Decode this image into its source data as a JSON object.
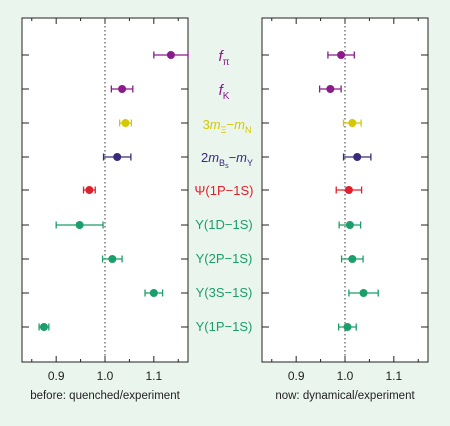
{
  "chart_data": [
    {
      "type": "scatter",
      "title": "",
      "xlabel": "before: quenched/experiment",
      "ylabel": "",
      "xlim": [
        0.83,
        1.17
      ],
      "xticks": [
        "0.9",
        "1.0",
        "1.1"
      ],
      "reference_line": 1.0,
      "points": [
        {
          "y": "f_π",
          "x": 1.135,
          "err": 0.035,
          "color": "#8b1a8b"
        },
        {
          "y": "f_K",
          "x": 1.035,
          "err": 0.022,
          "color": "#8b1a8b"
        },
        {
          "y": "3m_Ξ − m_N",
          "x": 1.042,
          "err": 0.012,
          "color": "#d4c800"
        },
        {
          "y": "2m_Bs − m_Υ",
          "x": 1.025,
          "err": 0.028,
          "color": "#3a2a7a"
        },
        {
          "y": "Ψ(1P−1S)",
          "x": 0.968,
          "err": 0.012,
          "color": "#e0202a"
        },
        {
          "y": "Υ(1D−1S)",
          "x": 0.948,
          "err": 0.048,
          "color": "#1a9e6a"
        },
        {
          "y": "Υ(2P−1S)",
          "x": 1.015,
          "err": 0.02,
          "color": "#1a9e6a"
        },
        {
          "y": "Υ(3S−1S)",
          "x": 1.1,
          "err": 0.018,
          "color": "#1a9e6a"
        },
        {
          "y": "Υ(1P−1S)",
          "x": 0.875,
          "err": 0.01,
          "color": "#1a9e6a"
        }
      ]
    },
    {
      "type": "scatter",
      "title": "",
      "xlabel": "now: dynamical/experiment",
      "ylabel": "",
      "xlim": [
        0.83,
        1.17
      ],
      "xticks": [
        "0.9",
        "1.0",
        "1.1"
      ],
      "reference_line": 1.0,
      "points": [
        {
          "y": "f_π",
          "x": 0.992,
          "err": 0.027,
          "color": "#8b1a8b"
        },
        {
          "y": "f_K",
          "x": 0.97,
          "err": 0.022,
          "color": "#8b1a8b"
        },
        {
          "y": "3m_Ξ − m_N",
          "x": 1.015,
          "err": 0.018,
          "color": "#d4c800"
        },
        {
          "y": "2m_Bs − m_Υ",
          "x": 1.025,
          "err": 0.028,
          "color": "#3a2a7a"
        },
        {
          "y": "Ψ(1P−1S)",
          "x": 1.008,
          "err": 0.026,
          "color": "#e0202a"
        },
        {
          "y": "Υ(1D−1S)",
          "x": 1.01,
          "err": 0.022,
          "color": "#1a9e6a"
        },
        {
          "y": "Υ(2P−1S)",
          "x": 1.015,
          "err": 0.022,
          "color": "#1a9e6a"
        },
        {
          "y": "Υ(3S−1S)",
          "x": 1.038,
          "err": 0.03,
          "color": "#1a9e6a"
        },
        {
          "y": "Υ(1P−1S)",
          "x": 1.005,
          "err": 0.018,
          "color": "#1a9e6a"
        }
      ]
    }
  ]
}
